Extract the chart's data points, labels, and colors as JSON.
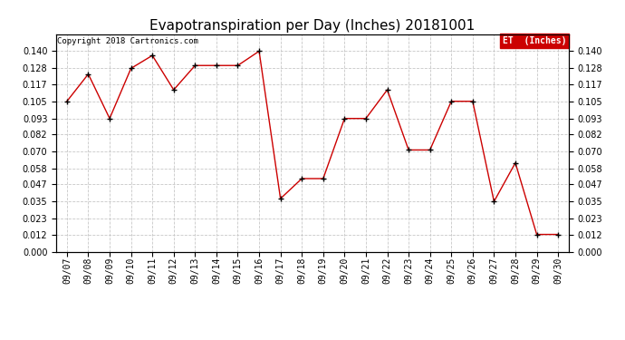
{
  "title": "Evapotranspiration per Day (Inches) 20181001",
  "copyright_text": "Copyright 2018 Cartronics.com",
  "legend_label": "ET  (Inches)",
  "legend_bg": "#cc0000",
  "legend_text_color": "#ffffff",
  "dates": [
    "09/07",
    "09/08",
    "09/09",
    "09/10",
    "09/11",
    "09/12",
    "09/13",
    "09/14",
    "09/15",
    "09/16",
    "09/17",
    "09/18",
    "09/19",
    "09/20",
    "09/21",
    "09/22",
    "09/23",
    "09/24",
    "09/25",
    "09/26",
    "09/27",
    "09/28",
    "09/29",
    "09/30"
  ],
  "values": [
    0.105,
    0.124,
    0.093,
    0.128,
    0.137,
    0.113,
    0.13,
    0.13,
    0.13,
    0.14,
    0.037,
    0.051,
    0.051,
    0.093,
    0.093,
    0.113,
    0.071,
    0.071,
    0.105,
    0.105,
    0.035,
    0.062,
    0.012,
    0.012
  ],
  "line_color": "#cc0000",
  "marker": "+",
  "marker_color": "#000000",
  "ylim": [
    0.0,
    0.152
  ],
  "yticks": [
    0.0,
    0.012,
    0.023,
    0.035,
    0.047,
    0.058,
    0.07,
    0.082,
    0.093,
    0.105,
    0.117,
    0.128,
    0.14
  ],
  "bg_color": "#ffffff",
  "grid_color": "#c8c8c8",
  "title_fontsize": 11,
  "copyright_fontsize": 6.5,
  "tick_fontsize": 7,
  "ylabel_fontsize": 7
}
